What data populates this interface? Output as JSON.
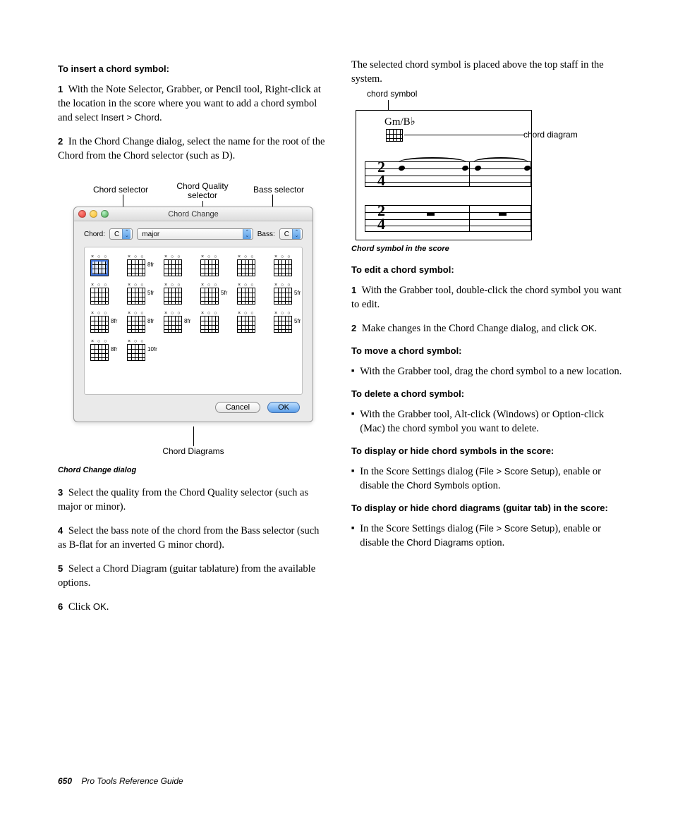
{
  "footer": {
    "page": "650",
    "title": "Pro Tools Reference Guide"
  },
  "left": {
    "h1": "To insert a chord symbol:",
    "s1_a": "With the Note Selector, Grabber, or Pencil tool, Right-click at the location in the score where you want to add a chord symbol and select ",
    "s1_b": "Insert > Chord",
    "s2": "In the Chord Change dialog, select the name for the root of the Chord from the Chord selector (such as D).",
    "fig_labels": {
      "chord_sel": "Chord selector",
      "quality_sel": "Chord Quality\nselector",
      "bass_sel": "Bass selector",
      "diagrams": "Chord Diagrams"
    },
    "dialog": {
      "title": "Chord Change",
      "chord_label": "Chord:",
      "chord_val": "C",
      "quality_val": "major",
      "bass_label": "Bass:",
      "bass_val": "C",
      "frets": [
        "",
        "8fr",
        "",
        "",
        "",
        "",
        "",
        "5fr",
        "",
        "5fr",
        "",
        "5fr",
        "8fr",
        "8fr",
        "8fr",
        "",
        "",
        "5fr",
        "8fr",
        "10fr"
      ],
      "cancel": "Cancel",
      "ok": "OK"
    },
    "caption1": "Chord Change dialog",
    "s3": "Select the quality from the Chord Quality selector (such as major or minor).",
    "s4": "Select the bass note of the chord from the Bass selector (such as B-flat for an inverted G minor chord).",
    "s5": "Select a Chord Diagram (guitar tablature) from the available options.",
    "s6_a": "Click ",
    "s6_b": "OK"
  },
  "right": {
    "intro": "The selected chord symbol is placed above the top staff in the system.",
    "call_top": "chord symbol",
    "call_side": "chord diagram",
    "chord_text": "Gm/B♭",
    "caption2": "Chord symbol in the score",
    "h2": "To edit a chord symbol:",
    "e1": "With the Grabber tool, double-click the chord symbol you want to edit.",
    "e2_a": "Make changes in the Chord Change dialog, and click ",
    "e2_b": "OK",
    "h3": "To move a chord symbol:",
    "m1": "With the Grabber tool, drag the chord symbol to a new location.",
    "h4": "To delete a chord symbol:",
    "d1": "With the Grabber tool, Alt-click (Windows) or Option-click (Mac) the chord symbol you want to delete.",
    "h5": "To display or hide chord symbols in the score:",
    "sh1_a": "In the Score Settings dialog (",
    "sh1_b": "File > Score Setup",
    "sh1_c": "), enable or disable the ",
    "sh1_d": "Chord Symbols",
    "sh1_e": " option.",
    "h6": "To display or hide chord diagrams (guitar tab) in the score:",
    "sh2_a": "In the Score Settings dialog (",
    "sh2_b": "File > Score Setup",
    "sh2_c": "), enable or disable the ",
    "sh2_d": "Chord Diagrams",
    "sh2_e": " option."
  }
}
